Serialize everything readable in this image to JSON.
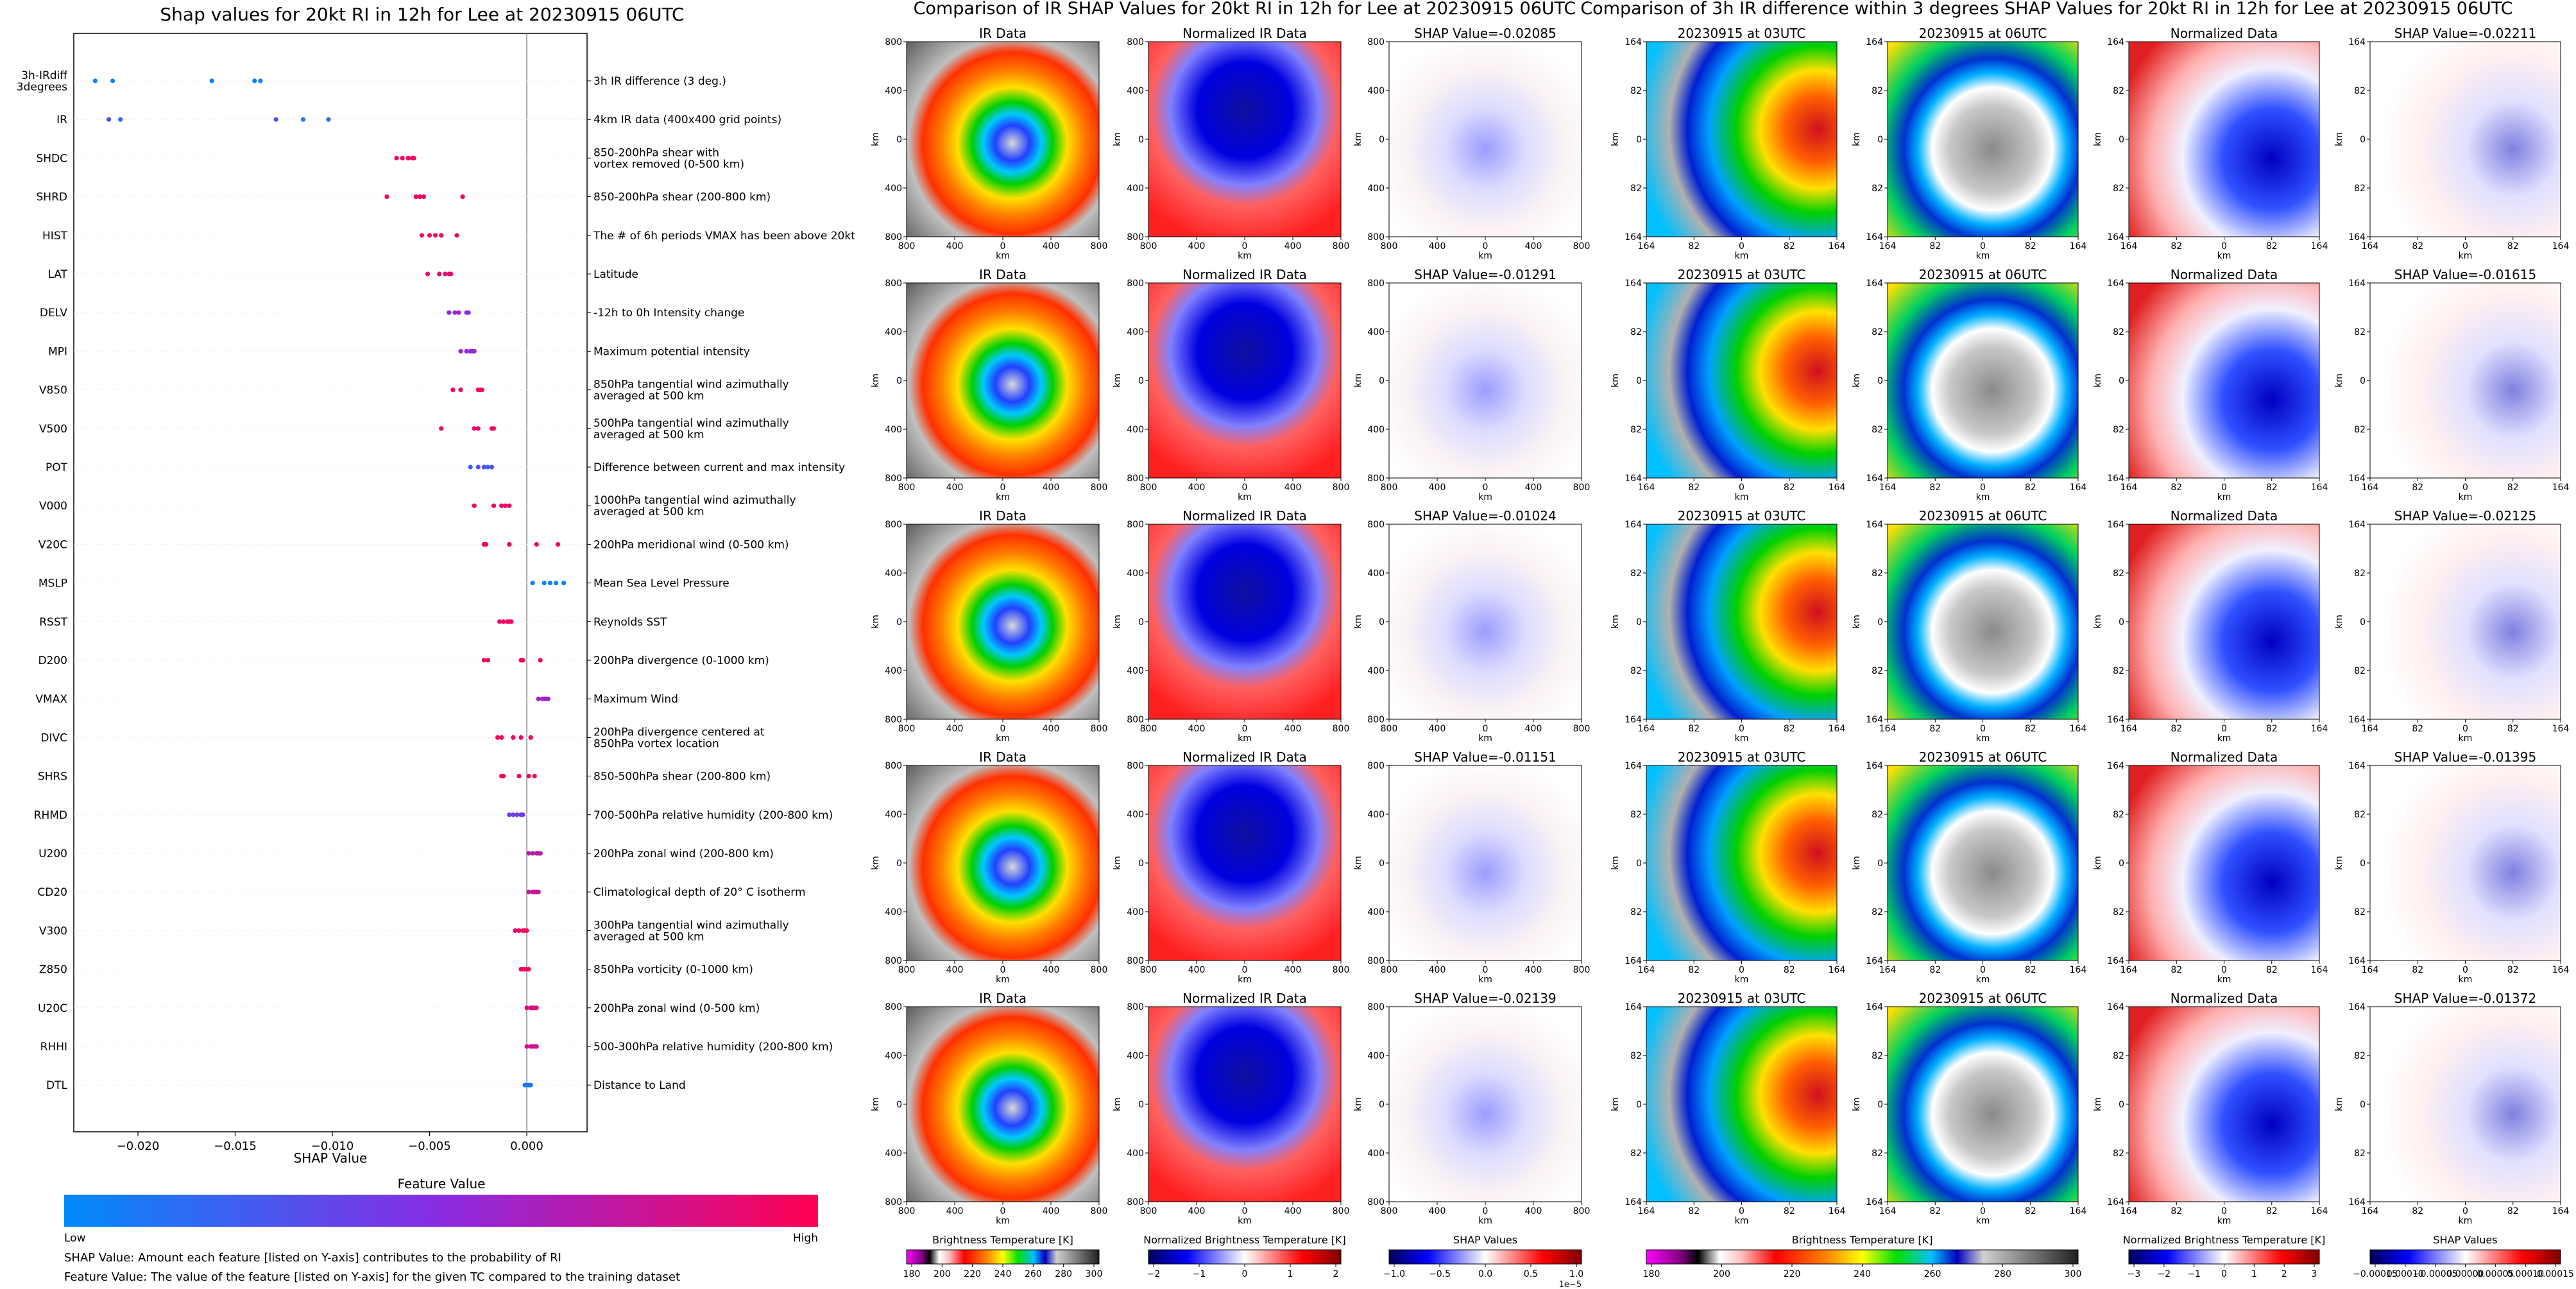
{
  "left_panel": {
    "title": "Shap values for 20kt RI in 12h for Lee at 20230915 06UTC",
    "xlabel": "SHAP Value",
    "colorbar_title": "Feature Value",
    "colorbar_low": "Low",
    "colorbar_high": "High",
    "footnote1": "SHAP Value: Amount each feature [listed on Y-axis] contributes to the probability of RI",
    "footnote2": "Feature Value: The value of the feature [listed on Y-axis] for the given TC compared to the training dataset"
  },
  "middle_section": {
    "title": "Comparison of IR SHAP Values for 20kt RI in 12h for Lee at 20230915 06UTC",
    "col_titles": [
      "IR Data",
      "Normalized IR Data"
    ],
    "shap_titles": [
      "SHAP Value=-0.02085",
      "SHAP Value=-0.01291",
      "SHAP Value=-0.01024",
      "SHAP Value=-0.01151",
      "SHAP Value=-0.02139"
    ],
    "ticks": [
      "800",
      "400",
      "0",
      "400",
      "800"
    ],
    "axis_label": "km",
    "colorbars": [
      {
        "label": "Brightness Temperature [K]",
        "ticks": [
          "180",
          "200",
          "220",
          "240",
          "260",
          "280",
          "300"
        ],
        "scheme": "ir"
      },
      {
        "label": "Normalized Brightness Temperature [K]",
        "ticks": [
          "−2",
          "−1",
          "0",
          "1",
          "2"
        ],
        "scheme": "bwr"
      },
      {
        "label": "SHAP Values",
        "ticks": [
          "−1.0",
          "−0.5",
          "0.0",
          "0.5",
          "1.0"
        ],
        "scheme": "bwr",
        "offset": "1e−5"
      }
    ]
  },
  "right_section": {
    "title": "Comparison of 3h IR difference within 3 degrees SHAP Values for 20kt RI in 12h for Lee at 20230915 06UTC",
    "col_titles": [
      "20230915 at 03UTC",
      "20230915 at 06UTC",
      "Normalized Data"
    ],
    "shap_titles": [
      "SHAP Value=-0.02211",
      "SHAP Value=-0.01615",
      "SHAP Value=-0.02125",
      "SHAP Value=-0.01395",
      "SHAP Value=-0.01372"
    ],
    "ticks": [
      "164",
      "82",
      "0",
      "82",
      "164"
    ],
    "axis_label": "km",
    "colorbars": [
      {
        "label": "Brightness Temperature [K]",
        "ticks": [
          "180",
          "200",
          "220",
          "240",
          "260",
          "280",
          "300"
        ],
        "scheme": "ir"
      },
      {
        "label": "Normalized Brightness Temperature [K]",
        "ticks": [
          "−3",
          "−2",
          "−1",
          "0",
          "1",
          "2",
          "3"
        ],
        "scheme": "bwr"
      },
      {
        "label": "SHAP Values",
        "ticks": [
          "−0.00015",
          "0.00010",
          "−0.00005",
          "0.00000",
          "0.00005",
          "0.00010",
          "0.00015"
        ],
        "scheme": "bwr"
      }
    ]
  },
  "chart_data": [
    {
      "type": "scatter",
      "title": "Shap values for 20kt RI in 12h for Lee at 20230915 06UTC",
      "xlabel": "SHAP Value",
      "ylabel": "",
      "xlim": [
        -0.0233,
        0.0031
      ],
      "xticks": [
        -0.02,
        -0.015,
        -0.01,
        -0.005,
        0.0
      ],
      "xtick_labels": [
        "−0.020",
        "−0.015",
        "−0.010",
        "−0.005",
        "0.000"
      ],
      "color_scale": {
        "low": "#008afb",
        "mid": "#8a2be2",
        "high": "#ff0052"
      },
      "features": [
        {
          "name": "3h-IRdiff\n3degrees",
          "desc": "3h IR difference (3 deg.)",
          "points": [
            -0.0222,
            -0.0213,
            -0.0162,
            -0.014,
            -0.0137
          ],
          "colors": [
            0.05,
            0.05,
            0.05,
            0.05,
            0.05
          ]
        },
        {
          "name": "IR",
          "desc": "4km IR data (400x400 grid points)",
          "points": [
            -0.0215,
            -0.0209,
            -0.0129,
            -0.0115,
            -0.0102
          ],
          "colors": [
            0.3,
            0.2,
            0.3,
            0.15,
            0.2
          ]
        },
        {
          "name": "SHDC",
          "desc": "850-200hPa shear with\nvortex removed (0-500 km)",
          "points": [
            -0.0067,
            -0.0064,
            -0.0061,
            -0.0059,
            -0.0058
          ],
          "colors": [
            0.95,
            0.95,
            0.95,
            0.95,
            0.95
          ]
        },
        {
          "name": "SHRD",
          "desc": "850-200hPa shear (200-800 km)",
          "points": [
            -0.0072,
            -0.0057,
            -0.0055,
            -0.0053,
            -0.0033
          ],
          "colors": [
            0.95,
            0.95,
            0.95,
            0.95,
            0.95
          ]
        },
        {
          "name": "HIST",
          "desc": "The # of 6h periods VMAX has been above 20kt",
          "points": [
            -0.0054,
            -0.005,
            -0.0047,
            -0.0044,
            -0.0036
          ],
          "colors": [
            0.95,
            0.95,
            0.95,
            0.95,
            0.95
          ]
        },
        {
          "name": "LAT",
          "desc": "Latitude",
          "points": [
            -0.0051,
            -0.0045,
            -0.0042,
            -0.004,
            -0.0039
          ],
          "colors": [
            0.9,
            0.9,
            0.9,
            0.9,
            0.9
          ]
        },
        {
          "name": "DELV",
          "desc": "-12h to 0h Intensity change",
          "points": [
            -0.004,
            -0.0037,
            -0.0035,
            -0.0031,
            -0.003
          ],
          "colors": [
            0.5,
            0.5,
            0.6,
            0.5,
            0.5
          ]
        },
        {
          "name": "MPI",
          "desc": "Maximum potential intensity",
          "points": [
            -0.0034,
            -0.0031,
            -0.0029,
            -0.0028,
            -0.0027
          ],
          "colors": [
            0.55,
            0.55,
            0.55,
            0.55,
            0.55
          ]
        },
        {
          "name": "V850",
          "desc": "850hPa tangential wind azimuthally\naveraged at 500 km",
          "points": [
            -0.0038,
            -0.0034,
            -0.0025,
            -0.0024,
            -0.0023
          ],
          "colors": [
            0.95,
            0.95,
            0.95,
            0.95,
            0.95
          ]
        },
        {
          "name": "V500",
          "desc": "500hPa tangential wind azimuthally\naveraged at 500 km",
          "points": [
            -0.0044,
            -0.0027,
            -0.0025,
            -0.0018,
            -0.0017
          ],
          "colors": [
            0.95,
            0.95,
            0.95,
            0.95,
            0.95
          ]
        },
        {
          "name": "POT",
          "desc": "Difference between current and max intensity",
          "points": [
            -0.0029,
            -0.0025,
            -0.0022,
            -0.002,
            -0.0018
          ],
          "colors": [
            0.2,
            0.3,
            0.3,
            0.2,
            0.3
          ]
        },
        {
          "name": "V000",
          "desc": "1000hPa tangential wind azimuthally\naveraged at 500 km",
          "points": [
            -0.0027,
            -0.0017,
            -0.0013,
            -0.0011,
            -0.0009
          ],
          "colors": [
            0.95,
            0.95,
            0.95,
            0.95,
            0.95
          ]
        },
        {
          "name": "V20C",
          "desc": "200hPa meridional wind (0-500 km)",
          "points": [
            -0.0022,
            -0.0021,
            -0.0009,
            0.0005,
            0.0016
          ],
          "colors": [
            0.95,
            0.95,
            0.95,
            0.95,
            0.95
          ]
        },
        {
          "name": "MSLP",
          "desc": "Mean Sea Level Pressure",
          "points": [
            0.0003,
            0.0009,
            0.0012,
            0.0015,
            0.0019
          ],
          "colors": [
            0.05,
            0.05,
            0.05,
            0.05,
            0.05
          ]
        },
        {
          "name": "RSST",
          "desc": "Reynolds SST",
          "points": [
            -0.0014,
            -0.0012,
            -0.001,
            -0.0009,
            -0.0008
          ],
          "colors": [
            0.95,
            0.95,
            0.95,
            0.95,
            0.95
          ]
        },
        {
          "name": "D200",
          "desc": "200hPa divergence (0-1000 km)",
          "points": [
            -0.0022,
            -0.002,
            -0.0003,
            -0.0002,
            0.0007
          ],
          "colors": [
            0.95,
            0.95,
            0.95,
            0.95,
            0.95
          ]
        },
        {
          "name": "VMAX",
          "desc": "Maximum Wind",
          "points": [
            0.0006,
            0.0008,
            0.0009,
            0.001,
            0.0011
          ],
          "colors": [
            0.6,
            0.6,
            0.6,
            0.6,
            0.6
          ]
        },
        {
          "name": "DIVC",
          "desc": "200hPa divergence centered at\n850hPa vortex location",
          "points": [
            -0.0015,
            -0.0013,
            -0.0007,
            -0.0003,
            0.0002
          ],
          "colors": [
            0.95,
            0.95,
            0.95,
            0.95,
            0.95
          ]
        },
        {
          "name": "SHRS",
          "desc": "850-500hPa shear (200-800 km)",
          "points": [
            -0.0013,
            -0.0012,
            -0.0004,
            0.0001,
            0.0004
          ],
          "colors": [
            0.95,
            0.95,
            0.95,
            0.95,
            0.95
          ]
        },
        {
          "name": "RHMD",
          "desc": "700-500hPa relative humidity (200-800 km)",
          "points": [
            -0.0009,
            -0.0007,
            -0.0005,
            -0.0003,
            -0.0002
          ],
          "colors": [
            0.4,
            0.4,
            0.4,
            0.4,
            0.4
          ]
        },
        {
          "name": "U200",
          "desc": "200hPa zonal wind (200-800 km)",
          "points": [
            0.0001,
            0.0003,
            0.0005,
            0.0006,
            0.0007
          ],
          "colors": [
            0.7,
            0.7,
            0.7,
            0.7,
            0.7
          ]
        },
        {
          "name": "CD20",
          "desc": "Climatological depth of 20° C isotherm",
          "points": [
            0.0001,
            0.0003,
            0.0004,
            0.0005,
            0.0006
          ],
          "colors": [
            0.75,
            0.75,
            0.75,
            0.75,
            0.75
          ]
        },
        {
          "name": "V300",
          "desc": "300hPa tangential wind azimuthally\naveraged at 500 km",
          "points": [
            -0.0006,
            -0.0004,
            -0.0002,
            -0.0001,
            0.0
          ],
          "colors": [
            0.95,
            0.95,
            0.95,
            0.95,
            0.95
          ]
        },
        {
          "name": "Z850",
          "desc": "850hPa vorticity (0-1000 km)",
          "points": [
            -0.0003,
            -0.0002,
            -0.0001,
            0.0,
            0.0001
          ],
          "colors": [
            0.95,
            0.95,
            0.95,
            0.95,
            0.95
          ]
        },
        {
          "name": "U20C",
          "desc": "200hPa zonal wind (0-500 km)",
          "points": [
            0.0,
            0.0002,
            0.0003,
            0.0004,
            0.0005
          ],
          "colors": [
            0.85,
            0.85,
            0.85,
            0.85,
            0.85
          ]
        },
        {
          "name": "RHHI",
          "desc": "500-300hPa relative humidity (200-800 km)",
          "points": [
            0.0,
            0.0002,
            0.0003,
            0.0004,
            0.0005
          ],
          "colors": [
            0.8,
            0.8,
            0.8,
            0.8,
            0.8
          ]
        },
        {
          "name": "DTL",
          "desc": "Distance to Land",
          "points": [
            -0.0001,
            0.0,
            0.0001,
            0.0001,
            0.0002
          ],
          "colors": [
            0.1,
            0.1,
            0.1,
            0.1,
            0.1
          ]
        }
      ]
    }
  ]
}
